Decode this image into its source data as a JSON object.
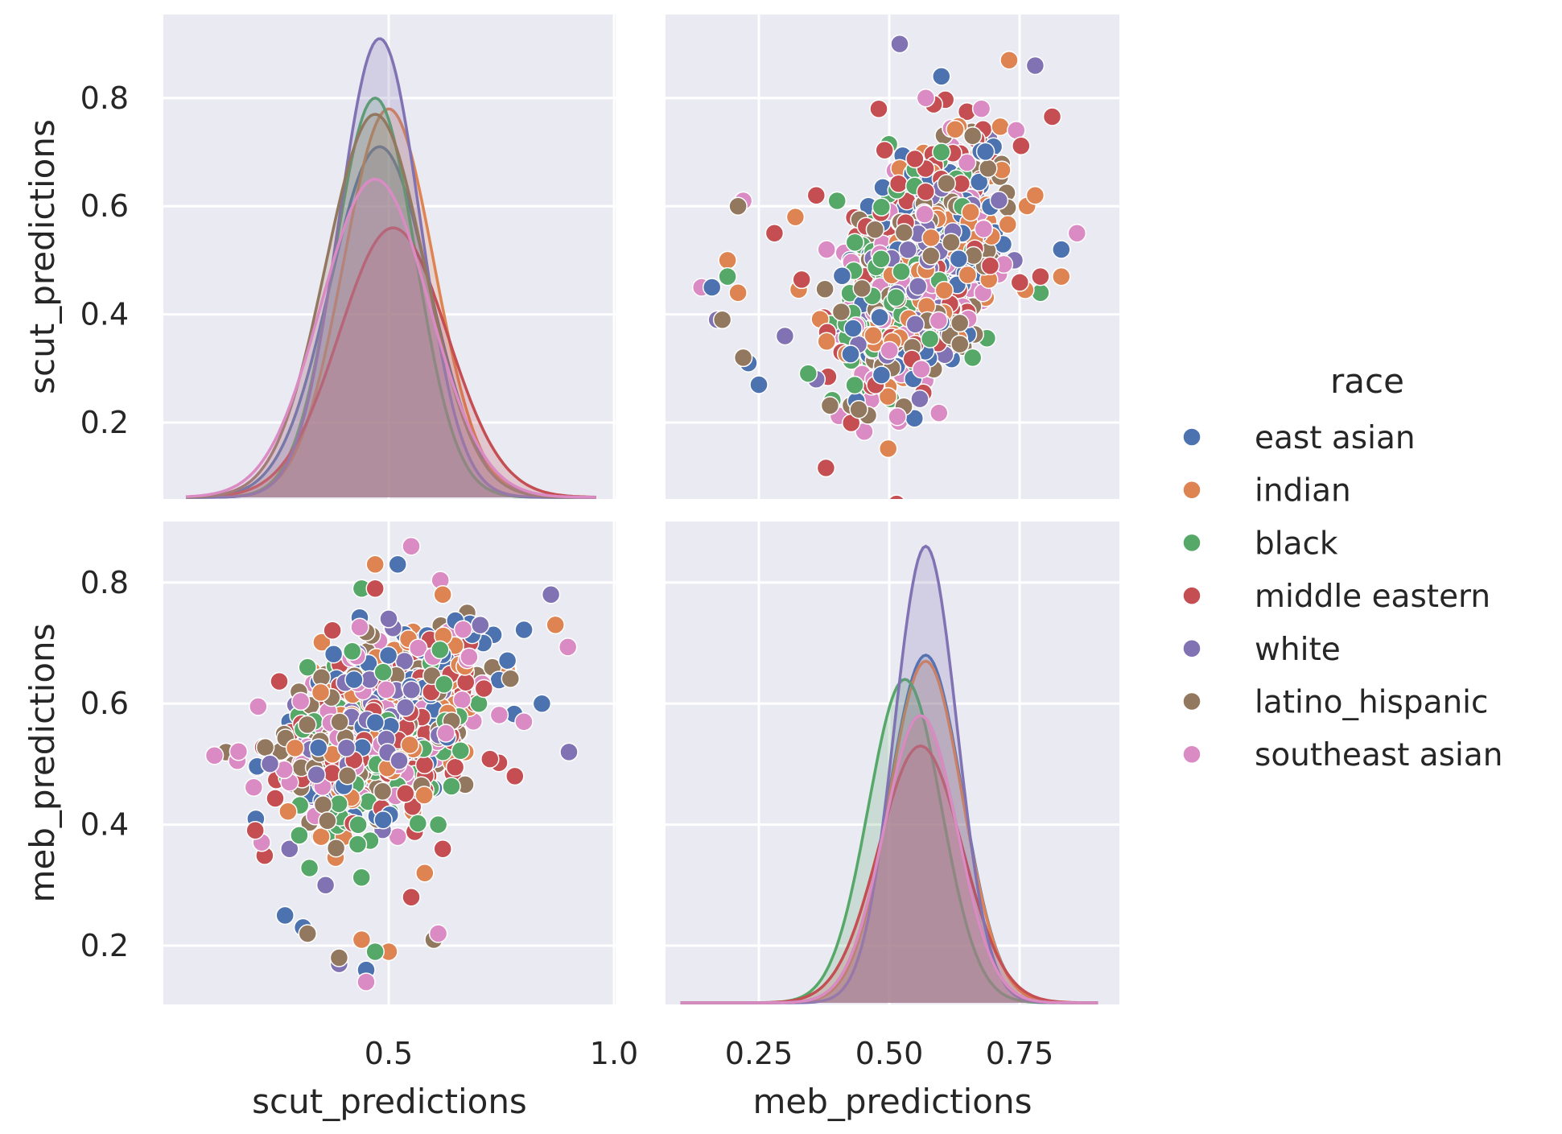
{
  "chart_data": {
    "type": "scatter",
    "kind": "pairplot",
    "hue_variable": "race",
    "legend": {
      "title": "race",
      "placement": "right"
    },
    "background": "#eaeaf2",
    "grid": true,
    "variables": [
      "scut_predictions",
      "meb_predictions"
    ],
    "axis_ranges": {
      "scut_predictions": [
        0.05,
        0.96
      ],
      "meb_predictions": [
        0.1,
        0.9
      ]
    },
    "ticks": {
      "scut_predictions_x": [
        {
          "v": 0.5,
          "label": "0.5"
        },
        {
          "v": 1.0,
          "label": "1.0"
        }
      ],
      "meb_predictions_x": [
        {
          "v": 0.25,
          "label": "0.25"
        },
        {
          "v": 0.5,
          "label": "0.50"
        },
        {
          "v": 0.75,
          "label": "0.75"
        }
      ],
      "scut_predictions_y": [
        {
          "v": 0.2,
          "label": "0.2"
        },
        {
          "v": 0.4,
          "label": "0.4"
        },
        {
          "v": 0.6,
          "label": "0.6"
        },
        {
          "v": 0.8,
          "label": "0.8"
        }
      ],
      "meb_predictions_y": [
        {
          "v": 0.2,
          "label": "0.2"
        },
        {
          "v": 0.4,
          "label": "0.4"
        },
        {
          "v": 0.6,
          "label": "0.6"
        },
        {
          "v": 0.8,
          "label": "0.8"
        }
      ]
    },
    "series": [
      {
        "name": "east asian",
        "color": "#4c72b0",
        "scut": {
          "mean": 0.48,
          "sd": 0.11
        },
        "meb": {
          "mean": 0.57,
          "sd": 0.07
        },
        "kde_peak_scut": 0.71,
        "kde_peak_meb": 0.68,
        "points": [
          [
            0.28,
            0.57
          ],
          [
            0.27,
            0.25
          ],
          [
            0.31,
            0.23
          ],
          [
            0.45,
            0.16
          ],
          [
            0.52,
            0.83
          ],
          [
            0.71,
            0.7
          ],
          [
            0.84,
            0.6
          ],
          [
            0.4,
            0.52
          ],
          [
            0.6,
            0.46
          ],
          [
            0.55,
            0.64
          ]
        ]
      },
      {
        "name": "indian",
        "color": "#dd8452",
        "scut": {
          "mean": 0.5,
          "sd": 0.1
        },
        "meb": {
          "mean": 0.57,
          "sd": 0.07
        },
        "kde_peak_scut": 0.78,
        "kde_peak_meb": 0.67,
        "points": [
          [
            0.47,
            0.83
          ],
          [
            0.5,
            0.19
          ],
          [
            0.87,
            0.73
          ],
          [
            0.44,
            0.21
          ],
          [
            0.67,
            0.52
          ],
          [
            0.35,
            0.38
          ],
          [
            0.58,
            0.32
          ],
          [
            0.62,
            0.78
          ]
        ]
      },
      {
        "name": "black",
        "color": "#55a868",
        "scut": {
          "mean": 0.47,
          "sd": 0.09
        },
        "meb": {
          "mean": 0.53,
          "sd": 0.07
        },
        "kde_peak_scut": 0.8,
        "kde_peak_meb": 0.64,
        "points": [
          [
            0.32,
            0.66
          ],
          [
            0.47,
            0.19
          ],
          [
            0.3,
            0.58
          ],
          [
            0.44,
            0.79
          ],
          [
            0.61,
            0.4
          ],
          [
            0.38,
            0.44
          ],
          [
            0.7,
            0.6
          ]
        ]
      },
      {
        "name": "middle eastern",
        "color": "#c44e52",
        "scut": {
          "mean": 0.51,
          "sd": 0.12
        },
        "meb": {
          "mean": 0.56,
          "sd": 0.08
        },
        "kde_peak_scut": 0.56,
        "kde_peak_meb": 0.53,
        "points": [
          [
            0.78,
            0.48
          ],
          [
            0.47,
            0.79
          ],
          [
            0.62,
            0.36
          ],
          [
            0.41,
            0.62
          ],
          [
            0.55,
            0.28
          ],
          [
            0.68,
            0.7
          ]
        ]
      },
      {
        "name": "white",
        "color": "#8172b3",
        "scut": {
          "mean": 0.48,
          "sd": 0.09
        },
        "meb": {
          "mean": 0.57,
          "sd": 0.06
        },
        "kde_peak_scut": 0.91,
        "kde_peak_meb": 0.86,
        "points": [
          [
            0.86,
            0.78
          ],
          [
            0.9,
            0.52
          ],
          [
            0.39,
            0.17
          ],
          [
            0.28,
            0.36
          ],
          [
            0.5,
            0.74
          ],
          [
            0.64,
            0.58
          ],
          [
            0.36,
            0.3
          ]
        ]
      },
      {
        "name": "latino_hispanic",
        "color": "#937860",
        "scut": {
          "mean": 0.47,
          "sd": 0.11
        },
        "meb": {
          "mean": 0.56,
          "sd": 0.07
        },
        "kde_peak_scut": 0.77,
        "kde_peak_meb": 0.58,
        "points": [
          [
            0.6,
            0.21
          ],
          [
            0.39,
            0.18
          ],
          [
            0.32,
            0.22
          ],
          [
            0.73,
            0.66
          ],
          [
            0.42,
            0.48
          ],
          [
            0.56,
            0.56
          ]
        ]
      },
      {
        "name": "southeast asian",
        "color": "#da8bc3",
        "scut": {
          "mean": 0.47,
          "sd": 0.12
        },
        "meb": {
          "mean": 0.56,
          "sd": 0.07
        },
        "kde_peak_scut": 0.65,
        "kde_peak_meb": 0.58,
        "points": [
          [
            0.55,
            0.86
          ],
          [
            0.45,
            0.14
          ],
          [
            0.61,
            0.22
          ],
          [
            0.28,
            0.47
          ],
          [
            0.8,
            0.57
          ],
          [
            0.44,
            0.68
          ],
          [
            0.52,
            0.38
          ]
        ]
      }
    ]
  }
}
